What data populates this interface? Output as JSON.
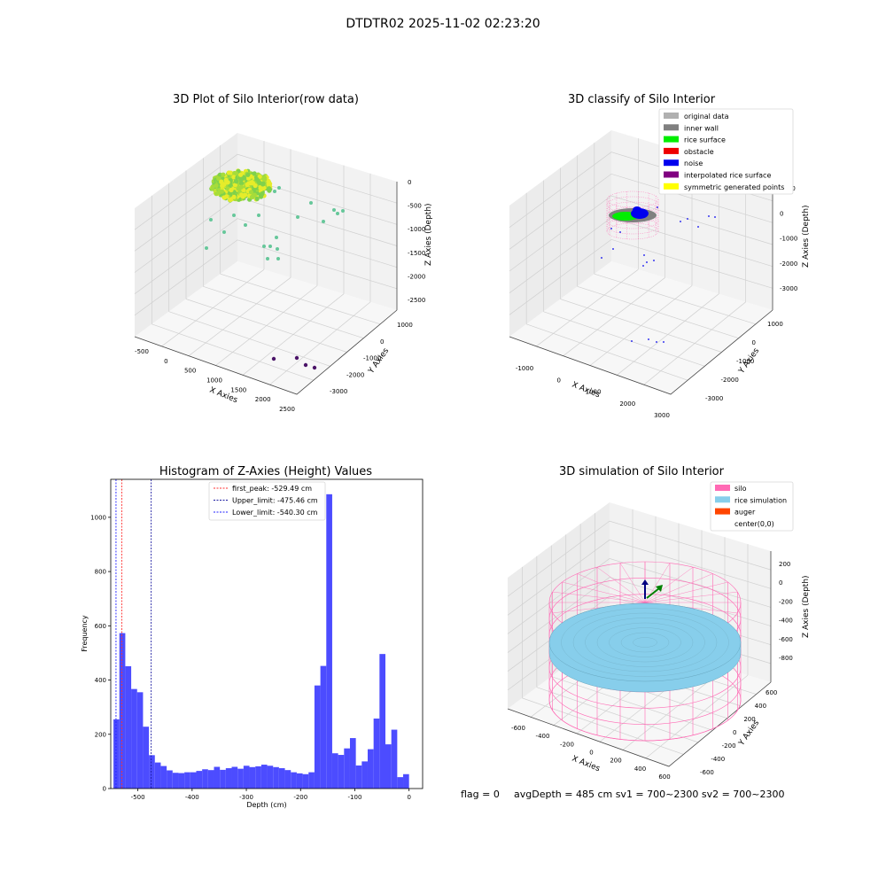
{
  "suptitle": "DTDTR02 2025-11-02 02:23:20",
  "colors": {
    "axis_pane_left": "#ececec",
    "axis_pane_right": "#f2f2f2",
    "axis_pane_floor": "#f7f7f7",
    "grid": "#d0d0d0",
    "edge": "#444444"
  },
  "chart_data": [
    {
      "type": "scatter",
      "title": "3D Plot of Silo Interior(row data)",
      "xlabel": "X Axies",
      "ylabel": "Y Axies",
      "zlabel": "Z Axies (Depth)",
      "xticks": [
        "-500",
        "0",
        "500",
        "1000",
        "1500",
        "2000",
        "2500"
      ],
      "yticks": [
        "1000",
        "0",
        "-1000",
        "-2000",
        "-3000"
      ],
      "zticks": [
        "0",
        "-500",
        "-1000",
        "-1500",
        "-2000",
        "-2500"
      ]
    },
    {
      "type": "scatter",
      "title": "3D classify of Silo Interior",
      "xlabel": "X Axies",
      "ylabel": "Y Axies",
      "zlabel": "Z Axies (Depth)",
      "xticks": [
        "-1000",
        "0",
        "1000",
        "2000",
        "3000"
      ],
      "yticks": [
        "1000",
        "0",
        "-1000",
        "-2000",
        "-3000"
      ],
      "zticks": [
        "1000",
        "0",
        "-1000",
        "-2000",
        "-3000"
      ],
      "legend": [
        {
          "label": "original data",
          "color": "#b0b0b0"
        },
        {
          "label": "inner wall",
          "color": "#808080"
        },
        {
          "label": "rice surface",
          "color": "#00ee00"
        },
        {
          "label": "obstacle",
          "color": "#ee0000"
        },
        {
          "label": "noise",
          "color": "#0000ee"
        },
        {
          "label": "interpolated rice surface",
          "color": "#800080"
        },
        {
          "label": "symmetric generated points",
          "color": "#ffff00"
        }
      ],
      "legend_loc": "upper right"
    },
    {
      "type": "bar",
      "title": "Histogram of Z-Axies (Height) Values",
      "xlabel": "Depth (cm)",
      "ylabel": "Frequency",
      "color": "#4c4cff",
      "bin_start": -545,
      "bin_width": 10.9,
      "values": [
        255,
        573,
        451,
        367,
        355,
        228,
        123,
        96,
        83,
        67,
        58,
        57,
        60,
        60,
        65,
        71,
        68,
        80,
        69,
        75,
        80,
        73,
        84,
        79,
        82,
        88,
        84,
        79,
        75,
        68,
        60,
        56,
        53,
        60,
        380,
        452,
        1085,
        130,
        124,
        148,
        186,
        85,
        100,
        145,
        258,
        496,
        163,
        217,
        42,
        53
      ],
      "xlim": [
        -550,
        25
      ],
      "ylim": [
        0,
        1140
      ],
      "xticks": [
        "-500",
        "-400",
        "-300",
        "-200",
        "-100",
        "0"
      ],
      "yticks": [
        "0",
        "200",
        "400",
        "600",
        "800",
        "1000"
      ],
      "vlines": [
        {
          "label": "first_peak: -529.49 cm",
          "x": -529.49,
          "color": "#ff3030"
        },
        {
          "label": "Upper_limit: -475.46 cm",
          "x": -475.46,
          "color": "#1a1aa0"
        },
        {
          "label": "Lower_limit: -540.30 cm",
          "x": -540.3,
          "color": "#2020ff"
        }
      ]
    },
    {
      "type": "scatter",
      "title": "3D simulation of Silo Interior",
      "xlabel": "X Axies",
      "ylabel": "Y Axies",
      "zlabel": "Z Axies (Depth)",
      "xticks": [
        "-600",
        "-400",
        "-200",
        "0",
        "200",
        "400",
        "600"
      ],
      "yticks": [
        "600",
        "400",
        "200",
        "0",
        "-200",
        "-400",
        "-600"
      ],
      "zticks": [
        "200",
        "0",
        "-200",
        "-400",
        "-600",
        "-800"
      ],
      "legend": [
        {
          "label": "silo",
          "color": "#ff69b4"
        },
        {
          "label": "rice simulation",
          "color": "#87ceeb"
        },
        {
          "label": "auger",
          "color": "#ff4500"
        },
        {
          "label": "center(0,0)",
          "color": ""
        }
      ],
      "legend_loc": "upper right"
    }
  ],
  "footer": {
    "flag": "flag = 0",
    "stats": "avgDepth = 485 cm  sv1 = 700~2300  sv2 = 700~2300"
  }
}
